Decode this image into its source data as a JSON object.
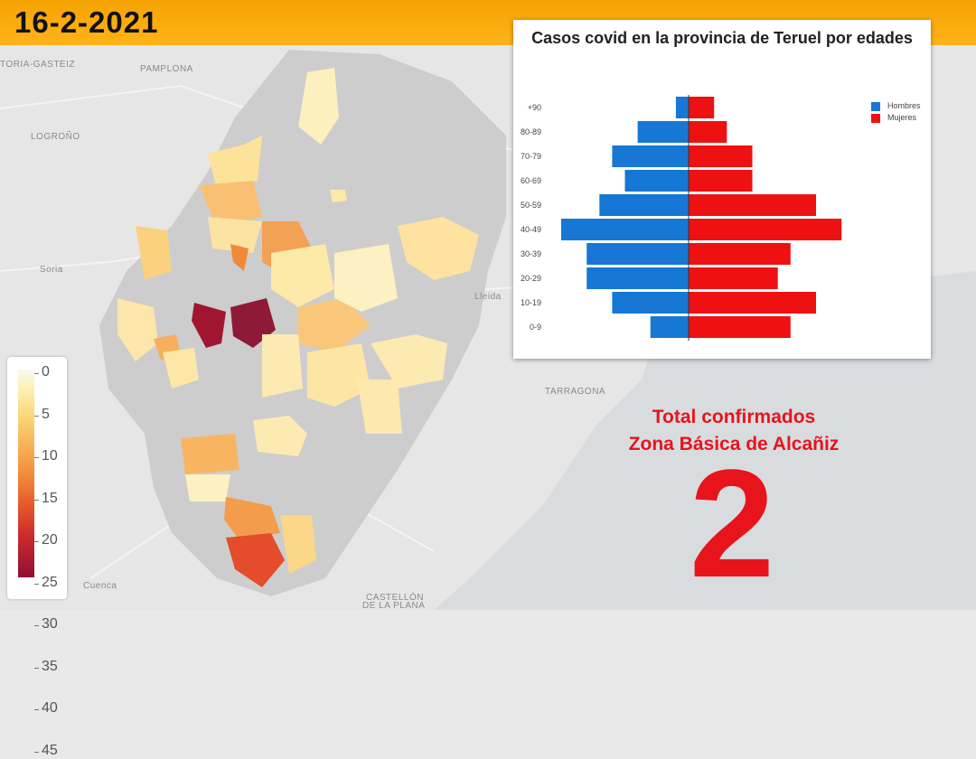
{
  "date": "16-2-2021",
  "map": {
    "cities": [
      {
        "key": "pamplona",
        "name": "PAMPLONA"
      },
      {
        "key": "logrono",
        "name": "LOGROÑO"
      },
      {
        "key": "vitoria",
        "name": "toria-Gasteiz"
      },
      {
        "key": "soria",
        "name": "Soria"
      },
      {
        "key": "lleida",
        "name": "Lleida"
      },
      {
        "key": "tarragona",
        "name": "TARRAGONA"
      },
      {
        "key": "cuenca",
        "name": "Cuenca"
      },
      {
        "key": "castellon1",
        "name": "CASTELLÓN"
      },
      {
        "key": "castellon2",
        "name": "DE LA PLANA"
      }
    ]
  },
  "legend": {
    "labels": [
      "0",
      "5",
      "10",
      "15",
      "20",
      "25",
      "30",
      "35",
      "40",
      "45"
    ]
  },
  "chart_data": {
    "type": "bar",
    "orientation": "horizontal-population-pyramid",
    "title": "Casos covid en la provincia de Teruel por edades",
    "categories": [
      "+90",
      "80-89",
      "70-79",
      "60-69",
      "50-59",
      "40-49",
      "30-39",
      "20-29",
      "10-19",
      "0-9"
    ],
    "series": [
      {
        "name": "Hombres",
        "color": "#1677d4",
        "values": [
          1,
          4,
          6,
          5,
          7,
          10,
          8,
          8,
          6,
          3
        ]
      },
      {
        "name": "Mujeres",
        "color": "#ee1111",
        "values": [
          2,
          3,
          5,
          5,
          10,
          12,
          8,
          7,
          10,
          8
        ]
      }
    ],
    "legend_position": "top-right",
    "grid": false
  },
  "summary": {
    "line1": "Total confirmados",
    "line2": "Zona Básica de Alcañiz",
    "total": "2"
  }
}
